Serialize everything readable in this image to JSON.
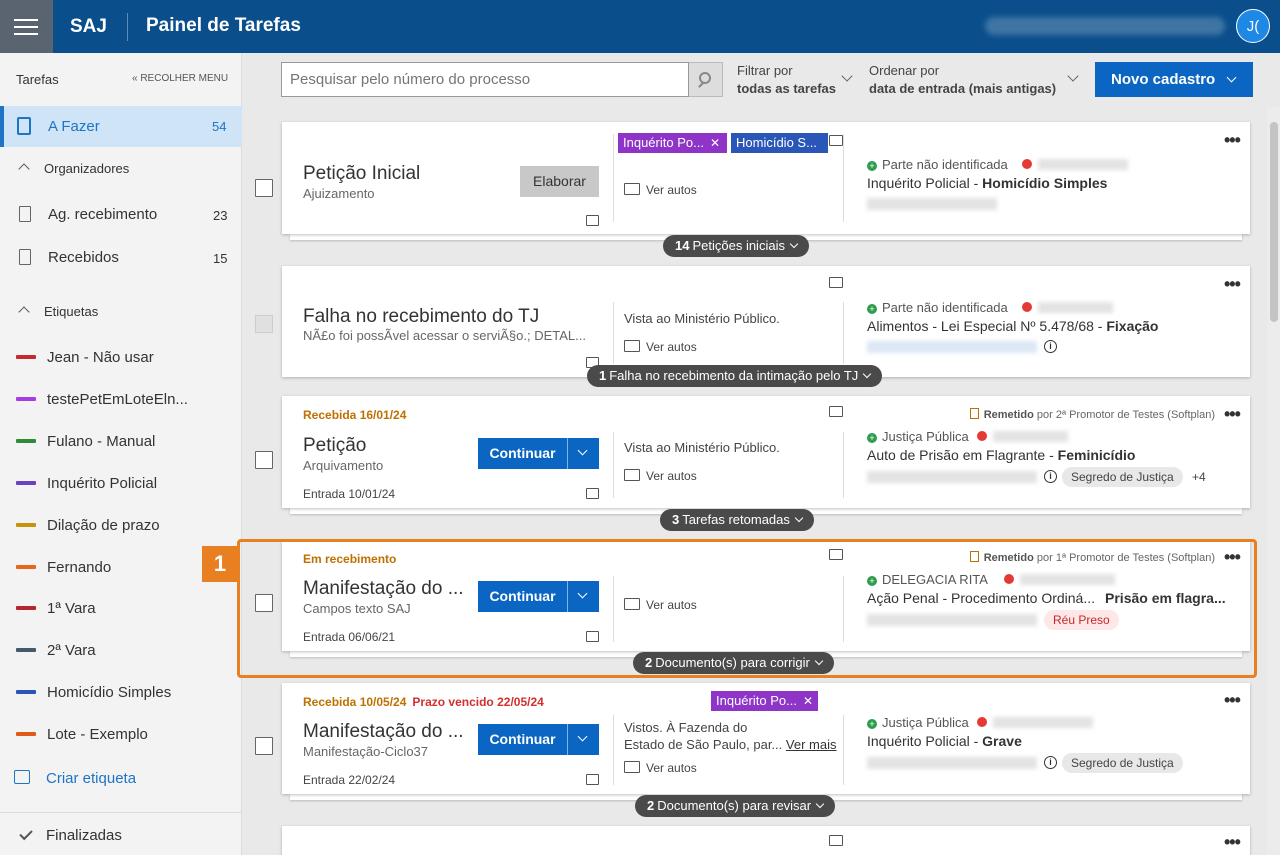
{
  "header": {
    "brand": "SAJ",
    "title": "Painel de Tarefas",
    "avatar": "J("
  },
  "sidebar": {
    "heading": "Tarefas",
    "collapse": "« RECOLHER MENU",
    "active": {
      "label": "A Fazer",
      "count": "54"
    },
    "organizers_title": "Organizadores",
    "organizers": [
      {
        "label": "Ag. recebimento",
        "count": "23"
      },
      {
        "label": "Recebidos",
        "count": "15"
      }
    ],
    "tags_title": "Etiquetas",
    "tags": [
      {
        "label": "Jean - Não usar",
        "color": "#c62832"
      },
      {
        "label": "testePetEmLoteEln...",
        "color": "#a93be3"
      },
      {
        "label": "Fulano - Manual",
        "color": "#2e8b3a"
      },
      {
        "label": "Inquérito Policial",
        "color": "#6a42c1"
      },
      {
        "label": "Dilação de prazo",
        "color": "#c9920c"
      },
      {
        "label": "Fernando",
        "color": "#e8641f"
      },
      {
        "label": "1ª Vara",
        "color": "#b3262d"
      },
      {
        "label": "2ª Vara",
        "color": "#445a6a"
      },
      {
        "label": "Homicídio Simples",
        "color": "#2a56b8"
      },
      {
        "label": "Lote - Exemplo",
        "color": "#e05a1a"
      }
    ],
    "create_tag": "Criar etiqueta",
    "finished": "Finalizadas"
  },
  "toolbar": {
    "search_placeholder": "Pesquisar pelo número do processo",
    "filter_label": "Filtrar por",
    "filter_value": "todas as tarefas",
    "order_label": "Ordenar por",
    "order_value": "data de entrada (mais antigas)",
    "new_button": "Novo cadastro"
  },
  "cards": [
    {
      "title": "Petição Inicial",
      "subtitle": "Ajuizamento",
      "button": "Elaborar",
      "chips": [
        {
          "label": "Inquérito Po...",
          "color": "#8e35c8"
        },
        {
          "label": "Homicídio S...",
          "color": "#2a56b8"
        }
      ],
      "autos": "Ver autos",
      "party": "Parte não identificada",
      "classe": "Inquérito Policial - ",
      "assunto": "Homicídio Simples",
      "group": {
        "count": "14",
        "label": "Petições iniciais"
      }
    },
    {
      "title": "Falha no recebimento do TJ",
      "subtitle": "NÃ£o foi possÃvel acessar o serviÃ§o.; DETAL...",
      "mid": "Vista ao Ministério Público.",
      "autos": "Ver autos",
      "party": "Parte não identificada",
      "classe": "Alimentos - Lei Especial Nº 5.478/68 - ",
      "assunto": "Fixação",
      "group": {
        "count": "1",
        "label": "Falha no recebimento da intimação pelo TJ"
      }
    },
    {
      "meta": "Recebida 16/01/24",
      "remit_bold": "Remetido",
      "remit_text": "por 2ª Promotor de Testes (Softplan)",
      "title": "Petição",
      "subtitle": "Arquivamento",
      "entry": "Entrada 10/01/24",
      "button": "Continuar",
      "mid": "Vista ao Ministério Público.",
      "autos": "Ver autos",
      "party": "Justiça Pública",
      "classe": "Auto de Prisão em Flagrante - ",
      "assunto": "Feminicídio",
      "pill": "Segredo de Justiça",
      "extra": "+4",
      "group": {
        "count": "3",
        "label": "Tarefas retomadas"
      }
    },
    {
      "meta": "Em recebimento",
      "remit_bold": "Remetido",
      "remit_text": "por 1ª Promotor de Testes (Softplan)",
      "title": "Manifestação do ...",
      "subtitle": "Campos texto SAJ",
      "entry": "Entrada 06/06/21",
      "button": "Continuar",
      "autos": "Ver autos",
      "party": "DELEGACIA RITA",
      "classe": "Ação Penal - Procedimento Ordiná...",
      "assunto": "Prisão em flagra...",
      "pill": "Réu Preso",
      "group": {
        "count": "2",
        "label": "Documento(s) para corrigir"
      }
    },
    {
      "meta": "Recebida 10/05/24",
      "late": "Prazo vencido 22/05/24",
      "title": "Manifestação do ...",
      "subtitle": "Manifestação-Ciclo37",
      "entry": "Entrada 22/02/24",
      "button": "Continuar",
      "chip": {
        "label": "Inquérito Po...",
        "color": "#8e35c8"
      },
      "mid1": "Vistos. À Fazenda do",
      "mid2": "Estado de São Paulo, par...",
      "more": "Ver mais",
      "autos": "Ver autos",
      "party": "Justiça Pública",
      "classe": "Inquérito Policial - ",
      "assunto": "Grave",
      "pill": "Segredo de Justiça",
      "group": {
        "count": "2",
        "label": "Documento(s) para revisar"
      }
    }
  ],
  "callout": "1"
}
